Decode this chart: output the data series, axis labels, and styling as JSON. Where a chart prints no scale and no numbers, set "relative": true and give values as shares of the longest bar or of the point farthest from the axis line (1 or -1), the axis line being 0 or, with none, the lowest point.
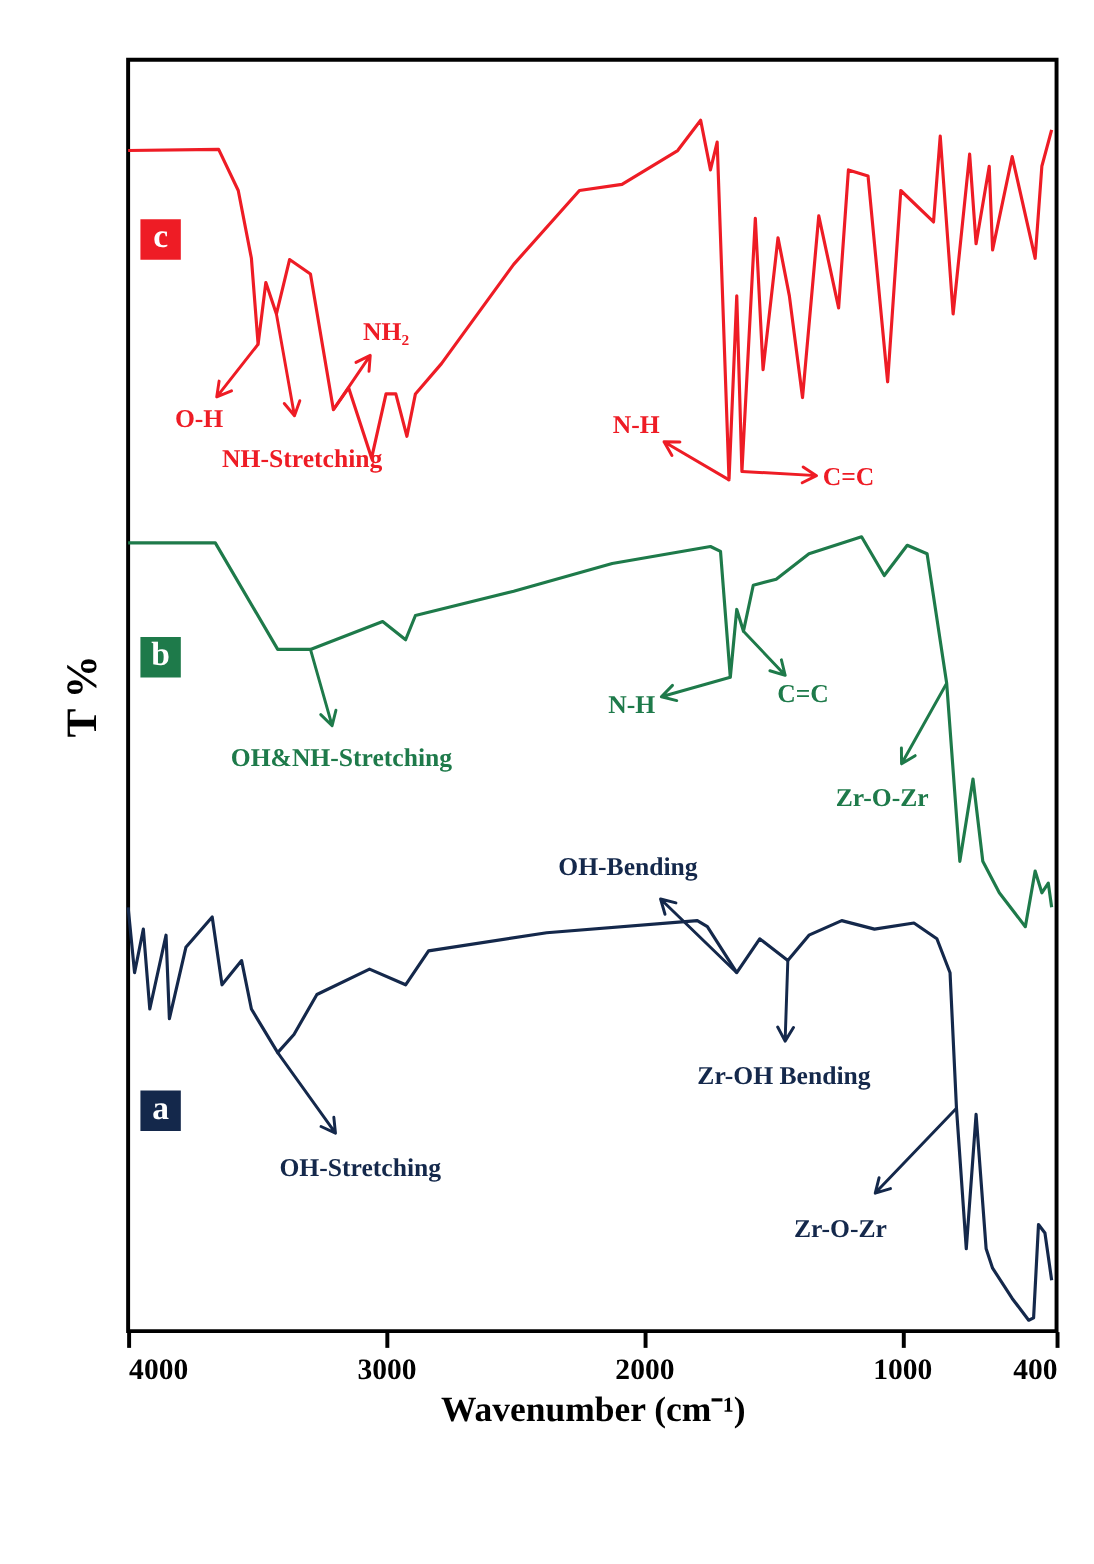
{
  "chart_data": {
    "type": "line",
    "xlabel": "Wavenumber (cm⁻¹)",
    "ylabel": "T %",
    "relative": true,
    "legend": false,
    "grid": false,
    "xlim": [
      4000,
      400
    ],
    "xticks": [
      4000,
      3000,
      2000,
      1000,
      400
    ],
    "series": [
      {
        "name": "a",
        "color": "#14284b",
        "x": [
          4000,
          3975,
          3941,
          3916,
          3853,
          3840,
          3776,
          3674,
          3636,
          3560,
          3522,
          3420,
          3357,
          3268,
          3064,
          2924,
          2835,
          2377,
          1793,
          1754,
          1640,
          1551,
          1442,
          1360,
          1233,
          1106,
          953,
          864,
          813,
          788,
          750,
          712,
          673,
          648,
          572,
          508,
          489,
          470,
          445,
          419
        ],
        "values": [
          0.35,
          0.296,
          0.332,
          0.266,
          0.327,
          0.258,
          0.317,
          0.342,
          0.286,
          0.306,
          0.266,
          0.23,
          0.245,
          0.278,
          0.299,
          0.286,
          0.314,
          0.329,
          0.339,
          0.334,
          0.296,
          0.324,
          0.306,
          0.327,
          0.339,
          0.332,
          0.337,
          0.324,
          0.296,
          0.184,
          0.068,
          0.179,
          0.068,
          0.052,
          0.027,
          0.009,
          0.011,
          0.088,
          0.081,
          0.042
        ]
      },
      {
        "name": "b",
        "color": "#1e7a4a",
        "x": [
          4000,
          3662,
          3420,
          3293,
          3013,
          2924,
          2886,
          2505,
          2123,
          1742,
          1703,
          1665,
          1640,
          1614,
          1576,
          1487,
          1360,
          1156,
          1068,
          979,
          902,
          826,
          775,
          724,
          686,
          622,
          521,
          483,
          457,
          432,
          419
        ],
        "values": [
          0.651,
          0.651,
          0.563,
          0.563,
          0.586,
          0.571,
          0.591,
          0.611,
          0.634,
          0.648,
          0.644,
          0.54,
          0.596,
          0.578,
          0.616,
          0.621,
          0.642,
          0.656,
          0.624,
          0.649,
          0.642,
          0.535,
          0.388,
          0.456,
          0.388,
          0.362,
          0.334,
          0.38,
          0.362,
          0.37,
          0.35
        ]
      },
      {
        "name": "c",
        "color": "#ee1c25",
        "x": [
          4000,
          3649,
          3573,
          3522,
          3496,
          3466,
          3425,
          3374,
          3293,
          3204,
          3145,
          3056,
          3000,
          2962,
          2919,
          2886,
          2785,
          2505,
          2250,
          2085,
          1869,
          1780,
          1742,
          1716,
          1670,
          1640,
          1620,
          1568,
          1538,
          1480,
          1436,
          1385,
          1322,
          1245,
          1207,
          1131,
          1055,
          1004,
          877,
          851,
          801,
          737,
          712,
          661,
          648,
          572,
          483,
          457,
          419
        ],
        "values": [
          0.975,
          0.976,
          0.942,
          0.886,
          0.815,
          0.866,
          0.84,
          0.885,
          0.873,
          0.761,
          0.779,
          0.721,
          0.774,
          0.774,
          0.739,
          0.774,
          0.799,
          0.881,
          0.942,
          0.947,
          0.975,
          1.0,
          0.959,
          0.982,
          0.703,
          0.855,
          0.71,
          0.919,
          0.794,
          0.903,
          0.855,
          0.771,
          0.921,
          0.845,
          0.959,
          0.954,
          0.784,
          0.942,
          0.916,
          0.987,
          0.84,
          0.972,
          0.898,
          0.962,
          0.893,
          0.97,
          0.886,
          0.962,
          0.992
        ]
      }
    ],
    "annotations": [
      {
        "text": "O-H",
        "x": 3496,
        "y": 0.815
      },
      {
        "text": "NH₂",
        "x": 3204,
        "y": 0.761
      },
      {
        "text": "NH-Stretching",
        "x": 3425,
        "y": 0.84
      },
      {
        "text": "N-H",
        "x": 1670,
        "y": 0.703
      },
      {
        "text": "C=C",
        "x": 1620,
        "y": 0.71
      },
      {
        "text": "OH&NH-Stretching",
        "x": 3293,
        "y": 0.563
      },
      {
        "text": "N-H",
        "x": 1665,
        "y": 0.54
      },
      {
        "text": "C=C",
        "x": 1614,
        "y": 0.578
      },
      {
        "text": "Zr-O-Zr",
        "x": 826,
        "y": 0.535
      },
      {
        "text": "OH-Bending",
        "x": 1640,
        "y": 0.296
      },
      {
        "text": "Zr-OH Bending",
        "x": 1442,
        "y": 0.306
      },
      {
        "text": "OH-Stretching",
        "x": 3420,
        "y": 0.23
      },
      {
        "text": "Zr-O-Zr",
        "x": 788,
        "y": 0.184
      }
    ]
  }
}
